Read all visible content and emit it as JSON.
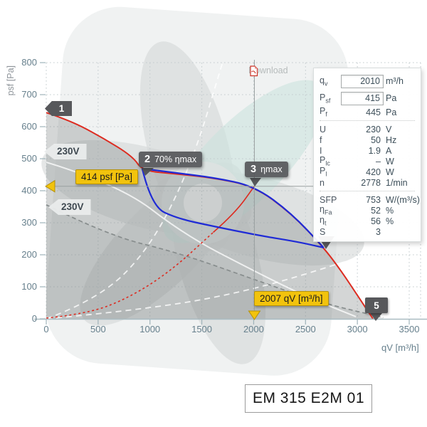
{
  "model_label": "EM 315 E2M 01",
  "download": {
    "label": "Download",
    "icon": "pdf-icon"
  },
  "axes": {
    "y_label": "psf [Pa]",
    "x_label": "qV [m³/h]"
  },
  "voltage_tags": {
    "upper": "230V",
    "lower": "230V"
  },
  "highlight": {
    "pressure_label": "414 psf [Pa]",
    "flow_label": "2007 qV [m³/h]"
  },
  "markers": {
    "m1": {
      "number": "1"
    },
    "m2": {
      "number": "2",
      "label": "70% ηmax"
    },
    "m3": {
      "number": "3",
      "label": "ηmax"
    },
    "m5": {
      "number": "5"
    }
  },
  "panel": {
    "rows": [
      {
        "id": "qv",
        "label": "q",
        "sub": "v",
        "value": "2010",
        "unit": "m³/h",
        "input": true
      },
      {
        "id": "psf",
        "label": "P",
        "sub": "sf",
        "value": "415",
        "unit": "Pa",
        "input": true
      },
      {
        "id": "pf",
        "label": "P",
        "sub": "f",
        "value": "445",
        "unit": "Pa"
      },
      {
        "sep": true
      },
      {
        "id": "u",
        "label": "U",
        "sub": "",
        "value": "230",
        "unit": "V"
      },
      {
        "id": "f",
        "label": "f",
        "sub": "",
        "value": "50",
        "unit": "Hz"
      },
      {
        "id": "i",
        "label": "I",
        "sub": "",
        "value": "1.9",
        "unit": "A"
      },
      {
        "id": "plc",
        "label": "P",
        "sub": "lc",
        "value": "–",
        "unit": "W"
      },
      {
        "id": "pl",
        "label": "P",
        "sub": "l",
        "value": "420",
        "unit": "W"
      },
      {
        "id": "n",
        "label": "n",
        "sub": "",
        "value": "2778",
        "unit": "1/min"
      },
      {
        "sep": true
      },
      {
        "id": "sfp",
        "label": "SFP",
        "sub": "",
        "value": "753",
        "unit": "W/(m³/s)"
      },
      {
        "id": "eta_fa",
        "label": "η",
        "sub": "Fa",
        "value": "52",
        "unit": "%"
      },
      {
        "id": "eta_t",
        "label": "η",
        "sub": "t",
        "value": "56",
        "unit": "%"
      },
      {
        "id": "s",
        "label": "S",
        "sub": "",
        "value": "3",
        "unit": ""
      }
    ]
  },
  "chart_data": {
    "type": "line",
    "xlabel": "qV [m³/h]",
    "ylabel": "psf [Pa]",
    "xlim": [
      0,
      3610
    ],
    "ylim": [
      0,
      800
    ],
    "x_ticks": [
      0,
      500,
      1000,
      1500,
      2000,
      2500,
      3000,
      3500
    ],
    "y_ticks": [
      0,
      100,
      200,
      300,
      400,
      500,
      600,
      700,
      800
    ],
    "grid": "dotted",
    "operating_point": {
      "qv": 2007,
      "psf": 414,
      "qv_input": 2010,
      "psf_input": 415
    },
    "colors": {
      "fan_curve": "#dd2b20",
      "operating_band": "#1f2bd6",
      "highlight": "#f2c30d",
      "marker": "#57585b",
      "crosshair": "#9aa0a0"
    },
    "series": [
      {
        "name": "curve-230v-secondary",
        "color": "#8d9292",
        "width": 1.7,
        "dash": "6 4",
        "fill": "rgba(128,134,134,0.16)",
        "points": [
          [
            0,
            356
          ],
          [
            582,
            262
          ],
          [
            1267,
            207
          ],
          [
            1952,
            129
          ],
          [
            2637,
            51
          ],
          [
            3250,
            4
          ]
        ]
      },
      {
        "name": "fan-curve-230v-max",
        "color": "#dd2b20",
        "width": 2,
        "fill": "rgba(124,131,131,0.33)",
        "points": [
          [
            0,
            644
          ],
          [
            240,
            618
          ],
          [
            534,
            567
          ],
          [
            835,
            507
          ],
          [
            925,
            462
          ],
          [
            1267,
            452
          ],
          [
            1610,
            440
          ],
          [
            2007,
            414
          ],
          [
            2363,
            329
          ],
          [
            2671,
            224
          ],
          [
            2842,
            151
          ],
          [
            3014,
            67
          ],
          [
            3151,
            0
          ]
        ]
      },
      {
        "name": "guide-curve-reduced-speed",
        "color": "#ffffff",
        "width": 2,
        "opacity": 0.75,
        "points": [
          [
            0,
            489
          ],
          [
            700,
            420
          ],
          [
            1335,
            262
          ],
          [
            2000,
            150
          ],
          [
            2500,
            70
          ],
          [
            2986,
            7
          ]
        ]
      },
      {
        "name": "guide-system-curve-steep",
        "color": "#ffffff",
        "width": 1.8,
        "dash": "8 6",
        "opacity": 0.8,
        "points": [
          [
            0,
            0
          ],
          [
            500,
            60
          ],
          [
            1000,
            220
          ],
          [
            1400,
            480
          ],
          [
            1700,
            800
          ]
        ]
      },
      {
        "name": "guide-system-curve-shallow",
        "color": "#ffffff",
        "width": 1.8,
        "dash": "8 6",
        "opacity": 0.8,
        "points": [
          [
            0,
            0
          ],
          [
            1000,
            30
          ],
          [
            2000,
            90
          ],
          [
            3000,
            190
          ],
          [
            3600,
            255
          ]
        ]
      },
      {
        "name": "system-curve-dashed",
        "color": "#dd2b20",
        "width": 1.6,
        "dash": "3 3.5",
        "points": [
          [
            0,
            2
          ],
          [
            400,
            16
          ],
          [
            800,
            66
          ],
          [
            1200,
            149
          ],
          [
            1610,
            270
          ]
        ]
      },
      {
        "name": "system-curve-solid",
        "color": "#dd2b20",
        "width": 1.6,
        "points": [
          [
            1610,
            270
          ],
          [
            1820,
            330
          ],
          [
            2007,
            414
          ]
        ]
      },
      {
        "name": "operating-band-lower",
        "color": "#1f2bd6",
        "width": 2.2,
        "points": [
          [
            925,
            469
          ],
          [
            1014,
            351
          ],
          [
            1267,
            313
          ],
          [
            1610,
            289
          ],
          [
            2021,
            262
          ],
          [
            2432,
            240
          ],
          [
            2678,
            222
          ]
        ]
      },
      {
        "name": "operating-band-upper",
        "color": "#1f2bd6",
        "width": 2.2,
        "points": [
          [
            925,
            469
          ],
          [
            1267,
            455
          ],
          [
            1610,
            441
          ],
          [
            2007,
            415
          ],
          [
            2363,
            330
          ],
          [
            2671,
            224
          ]
        ]
      }
    ]
  }
}
